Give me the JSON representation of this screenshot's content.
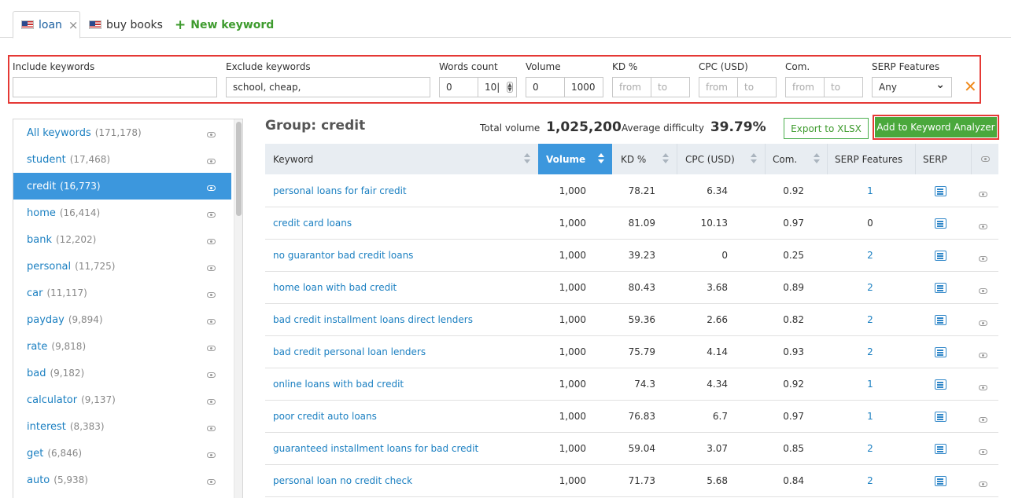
{
  "tabs": [
    {
      "label": "loan",
      "active": true,
      "close": "×"
    },
    {
      "label": "buy books",
      "active": false
    }
  ],
  "new_keyword": {
    "plus": "+",
    "label": "New keyword"
  },
  "filters": {
    "include": {
      "label": "Include keywords",
      "value": ""
    },
    "exclude": {
      "label": "Exclude keywords",
      "value": "school, cheap,"
    },
    "words_count": {
      "label": "Words count",
      "from": "0",
      "to": "10|"
    },
    "volume": {
      "label": "Volume",
      "from": "0",
      "to": "1000"
    },
    "kd": {
      "label": "KD %",
      "from_ph": "from",
      "to_ph": "to"
    },
    "cpc": {
      "label": "CPC (USD)",
      "from_ph": "from",
      "to_ph": "to"
    },
    "com": {
      "label": "Com.",
      "from_ph": "from",
      "to_ph": "to"
    },
    "serp": {
      "label": "SERP Features",
      "value": "Any",
      "chevron": "⌄"
    },
    "clear": "✕"
  },
  "sidebar": {
    "items": [
      {
        "label": "All keywords",
        "count": "(171,178)"
      },
      {
        "label": "student",
        "count": "(17,468)"
      },
      {
        "label": "credit",
        "count": "(16,773)",
        "selected": true
      },
      {
        "label": "home",
        "count": "(16,414)"
      },
      {
        "label": "bank",
        "count": "(12,202)"
      },
      {
        "label": "personal",
        "count": "(11,725)"
      },
      {
        "label": "car",
        "count": "(11,117)"
      },
      {
        "label": "payday",
        "count": "(9,894)"
      },
      {
        "label": "rate",
        "count": "(9,818)"
      },
      {
        "label": "bad",
        "count": "(9,182)"
      },
      {
        "label": "calculator",
        "count": "(9,137)"
      },
      {
        "label": "interest",
        "count": "(8,383)"
      },
      {
        "label": "get",
        "count": "(6,846)"
      },
      {
        "label": "auto",
        "count": "(5,938)"
      }
    ]
  },
  "group": {
    "prefix": "Group:",
    "name": "credit"
  },
  "total_volume": {
    "label": "Total volume",
    "value": "1,025,200"
  },
  "avg_difficulty": {
    "label": "Average difficulty",
    "value": "39.79%"
  },
  "buttons": {
    "export": "Export to XLSX",
    "add": "Add to Keyword Analyzer"
  },
  "table": {
    "headers": {
      "keyword": "Keyword",
      "volume": "Volume",
      "kd": "KD %",
      "cpc": "CPC (USD)",
      "com": "Com.",
      "serp_features": "SERP Features",
      "serp": "SERP"
    },
    "rows": [
      {
        "keyword": "personal loans for fair credit",
        "volume": "1,000",
        "kd": "78.21",
        "cpc": "6.34",
        "com": "0.92",
        "sf": "1"
      },
      {
        "keyword": "credit card loans",
        "volume": "1,000",
        "kd": "81.09",
        "cpc": "10.13",
        "com": "0.97",
        "sf": "0"
      },
      {
        "keyword": "no guarantor bad credit loans",
        "volume": "1,000",
        "kd": "39.23",
        "cpc": "0",
        "com": "0.25",
        "sf": "2"
      },
      {
        "keyword": "home loan with bad credit",
        "volume": "1,000",
        "kd": "80.43",
        "cpc": "3.68",
        "com": "0.89",
        "sf": "2"
      },
      {
        "keyword": "bad credit installment loans direct lenders",
        "volume": "1,000",
        "kd": "59.36",
        "cpc": "2.66",
        "com": "0.82",
        "sf": "2"
      },
      {
        "keyword": "bad credit personal loan lenders",
        "volume": "1,000",
        "kd": "75.79",
        "cpc": "4.14",
        "com": "0.93",
        "sf": "2"
      },
      {
        "keyword": "online loans with bad credit",
        "volume": "1,000",
        "kd": "74.3",
        "cpc": "4.34",
        "com": "0.92",
        "sf": "1"
      },
      {
        "keyword": "poor credit auto loans",
        "volume": "1,000",
        "kd": "76.83",
        "cpc": "6.7",
        "com": "0.97",
        "sf": "1"
      },
      {
        "keyword": "guaranteed installment loans for bad credit",
        "volume": "1,000",
        "kd": "59.04",
        "cpc": "3.07",
        "com": "0.85",
        "sf": "2"
      },
      {
        "keyword": "personal loan no credit check",
        "volume": "1,000",
        "kd": "71.73",
        "cpc": "5.68",
        "com": "0.84",
        "sf": "2"
      }
    ]
  },
  "colors": {
    "accent": "#3c97dd",
    "link": "#1a7fc1",
    "green": "#4aa83c",
    "highlight": "#e53935",
    "clear": "#f08a1c"
  }
}
